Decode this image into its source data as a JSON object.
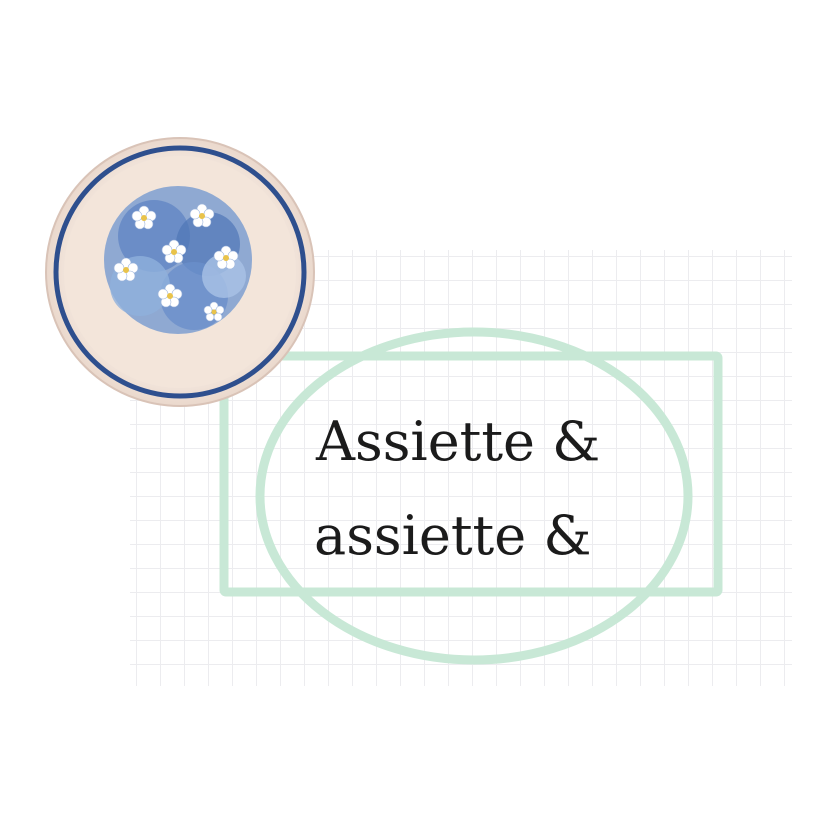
{
  "title": {
    "line1": "Assiette &",
    "line2": "assiette &"
  },
  "colors": {
    "frame": "#c8e8d6",
    "plate_rim": "#2e4f8e",
    "plate_body": "#f3e6dc",
    "flowers": "#5b82c2",
    "grid": "#ececef"
  },
  "illustration": {
    "plate": "floral-plate-illustration",
    "frame": "rectangle-and-ellipse-outline"
  }
}
